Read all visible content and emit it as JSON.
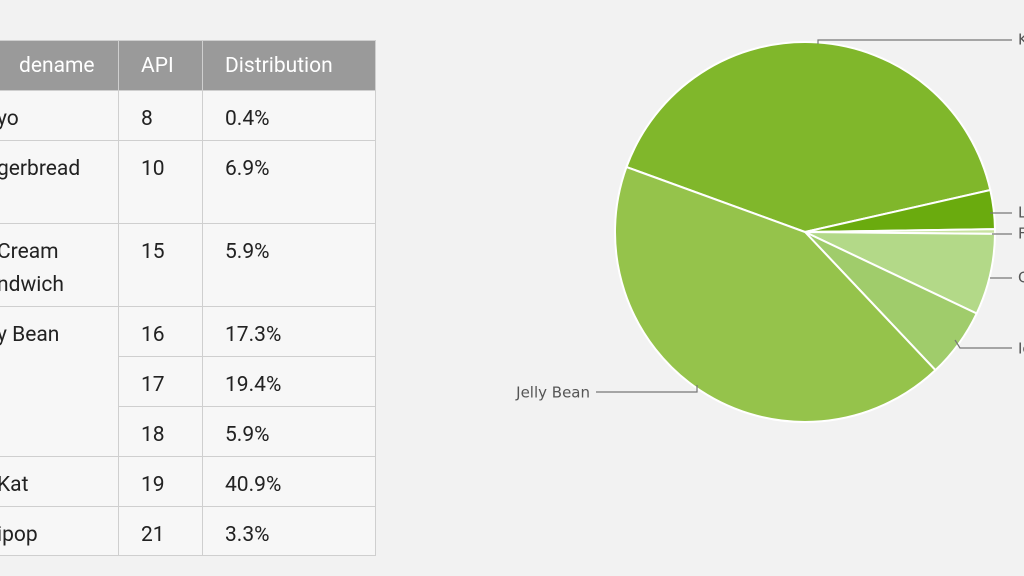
{
  "table": {
    "header": [
      "dename",
      "API",
      "Distribution"
    ],
    "rows": [
      {
        "codename": "yo",
        "versions": [
          {
            "api": "8",
            "distribution": "0.4%"
          }
        ]
      },
      {
        "codename": "gerbread",
        "versions": [
          {
            "api": "10",
            "distribution": "6.9%"
          }
        ]
      },
      {
        "codename": " Cream\nndwich",
        "versions": [
          {
            "api": "15",
            "distribution": "5.9%"
          }
        ]
      },
      {
        "codename": "y Bean",
        "versions": [
          {
            "api": "16",
            "distribution": "17.3%"
          },
          {
            "api": "17",
            "distribution": "19.4%"
          },
          {
            "api": "18",
            "distribution": "5.9%"
          }
        ]
      },
      {
        "codename": "Kat",
        "versions": [
          {
            "api": "19",
            "distribution": "40.9%"
          }
        ]
      },
      {
        "codename": "ipop",
        "versions": [
          {
            "api": "21",
            "distribution": "3.3%"
          }
        ]
      }
    ]
  },
  "chart_data": {
    "type": "pie",
    "categories": [
      "K",
      "L",
      "F",
      "G",
      "Ic",
      "Jelly Bean"
    ],
    "values": [
      40.9,
      3.3,
      0.4,
      6.9,
      5.9,
      42.6
    ],
    "colors": [
      "#80b72b",
      "#6aab0e",
      "#c8e2a0",
      "#b3d988",
      "#a0cc6b",
      "#95c34b"
    ]
  }
}
